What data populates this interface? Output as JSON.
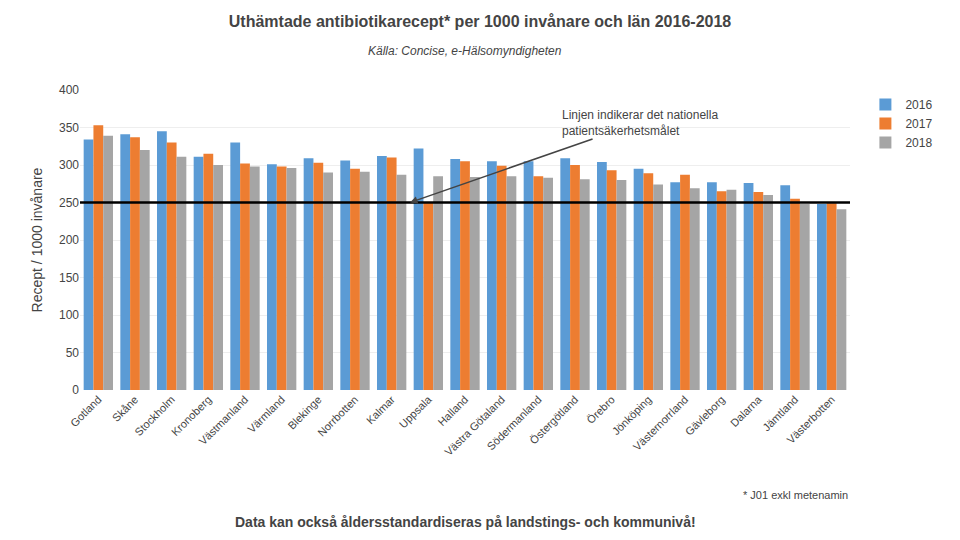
{
  "chart_data": {
    "type": "bar",
    "title": "Uthämtade antibiotikarecept* per 1000 invånare och län 2016-2018",
    "subtitle": "Källa: Concise, e-Hälsomyndigheten",
    "ylabel": "Recept / 1000 invånare",
    "footnote": "* J01 exkl metenamin",
    "bottom_note": "Data kan också åldersstandardiseras på landstings- och kommunivå!",
    "annotation": "Linjen indikerar det nationella\npatientsäkerhetsmålet",
    "reference_line": 250,
    "categories": [
      "Gotland",
      "Skåne",
      "Stockholm",
      "Kronoberg",
      "Västmanland",
      "Värmland",
      "Blekinge",
      "Norrbotten",
      "Kalmar",
      "Uppsala",
      "Halland",
      "Västra Götaland",
      "Södermanland",
      "Östergötland",
      "Örebro",
      "Jönköping",
      "Västernorrland",
      "Gävleborg",
      "Dalarna",
      "Jämtland",
      "Västerbotten"
    ],
    "series": [
      {
        "name": "2016",
        "color": "#5B9BD5",
        "values": [
          334,
          341,
          345,
          311,
          330,
          301,
          309,
          306,
          312,
          322,
          308,
          305,
          305,
          309,
          304,
          295,
          277,
          277,
          276,
          273,
          248
        ]
      },
      {
        "name": "2017",
        "color": "#ED7D31",
        "values": [
          353,
          337,
          330,
          315,
          302,
          298,
          303,
          295,
          310,
          250,
          305,
          299,
          285,
          300,
          293,
          289,
          287,
          265,
          264,
          255,
          249
        ]
      },
      {
        "name": "2018",
        "color": "#A5A5A5",
        "values": [
          339,
          320,
          311,
          300,
          298,
          296,
          290,
          291,
          287,
          285,
          284,
          285,
          283,
          281,
          280,
          274,
          269,
          267,
          260,
          248,
          241
        ]
      }
    ],
    "ylim": [
      0,
      400
    ],
    "yticks": [
      0,
      50,
      100,
      150,
      200,
      250,
      300,
      350,
      400
    ],
    "grid": true,
    "legend": "upper right"
  }
}
